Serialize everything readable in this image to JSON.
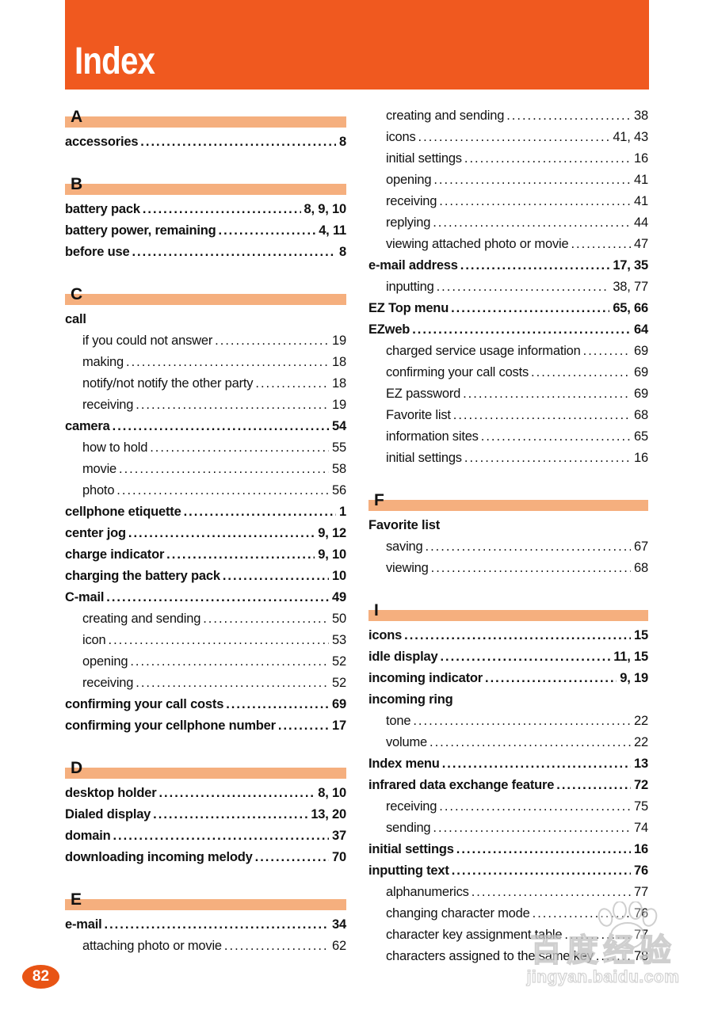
{
  "page": {
    "title": "Index",
    "page_number": "82"
  },
  "watermark": {
    "logo_text": "百度经验",
    "site_text": "jingyan.baidu.com"
  },
  "colors": {
    "header_orange": "#F0591F",
    "section_bar_peach": "#F5AF7E",
    "badge_orange": "#E85414",
    "text": "#111111"
  },
  "index": {
    "left_column": [
      {
        "type": "section",
        "letter": "A"
      },
      {
        "type": "entry",
        "label": "accessories",
        "pages": "8",
        "bold": true,
        "sub": false
      },
      {
        "type": "section",
        "letter": "B"
      },
      {
        "type": "entry",
        "label": "battery pack",
        "pages": "8, 9, 10",
        "bold": true,
        "sub": false
      },
      {
        "type": "entry",
        "label": "battery power, remaining",
        "pages": "4, 11",
        "bold": true,
        "sub": false
      },
      {
        "type": "entry",
        "label": "before use",
        "pages": "8",
        "bold": true,
        "sub": false
      },
      {
        "type": "section",
        "letter": "C"
      },
      {
        "type": "entry",
        "label": "call",
        "pages": "",
        "bold": true,
        "sub": false
      },
      {
        "type": "entry",
        "label": "if you could not answer",
        "pages": "19",
        "bold": false,
        "sub": true
      },
      {
        "type": "entry",
        "label": "making",
        "pages": "18",
        "bold": false,
        "sub": true
      },
      {
        "type": "entry",
        "label": "notify/not notify the other party",
        "pages": "18",
        "bold": false,
        "sub": true
      },
      {
        "type": "entry",
        "label": "receiving",
        "pages": "19",
        "bold": false,
        "sub": true
      },
      {
        "type": "entry",
        "label": "camera",
        "pages": "54",
        "bold": true,
        "sub": false
      },
      {
        "type": "entry",
        "label": "how to hold",
        "pages": "55",
        "bold": false,
        "sub": true
      },
      {
        "type": "entry",
        "label": "movie",
        "pages": "58",
        "bold": false,
        "sub": true
      },
      {
        "type": "entry",
        "label": "photo",
        "pages": "56",
        "bold": false,
        "sub": true
      },
      {
        "type": "entry",
        "label": "cellphone etiquette",
        "pages": "1",
        "bold": true,
        "sub": false
      },
      {
        "type": "entry",
        "label": "center jog",
        "pages": "9, 12",
        "bold": true,
        "sub": false
      },
      {
        "type": "entry",
        "label": "charge indicator",
        "pages": "9, 10",
        "bold": true,
        "sub": false
      },
      {
        "type": "entry",
        "label": "charging the battery pack",
        "pages": "10",
        "bold": true,
        "sub": false
      },
      {
        "type": "entry",
        "label": "C-mail",
        "pages": "49",
        "bold": true,
        "sub": false
      },
      {
        "type": "entry",
        "label": "creating and sending",
        "pages": "50",
        "bold": false,
        "sub": true
      },
      {
        "type": "entry",
        "label": "icon",
        "pages": "53",
        "bold": false,
        "sub": true
      },
      {
        "type": "entry",
        "label": "opening",
        "pages": "52",
        "bold": false,
        "sub": true
      },
      {
        "type": "entry",
        "label": "receiving",
        "pages": "52",
        "bold": false,
        "sub": true
      },
      {
        "type": "entry",
        "label": "confirming your call costs",
        "pages": "69",
        "bold": true,
        "sub": false
      },
      {
        "type": "entry",
        "label": "confirming your cellphone number",
        "pages": "17",
        "bold": true,
        "sub": false
      },
      {
        "type": "section",
        "letter": "D"
      },
      {
        "type": "entry",
        "label": "desktop holder",
        "pages": "8, 10",
        "bold": true,
        "sub": false
      },
      {
        "type": "entry",
        "label": "Dialed display",
        "pages": "13, 20",
        "bold": true,
        "sub": false
      },
      {
        "type": "entry",
        "label": "domain",
        "pages": "37",
        "bold": true,
        "sub": false
      },
      {
        "type": "entry",
        "label": "downloading incoming melody",
        "pages": "70",
        "bold": true,
        "sub": false
      },
      {
        "type": "section",
        "letter": "E"
      },
      {
        "type": "entry",
        "label": "e-mail",
        "pages": "34",
        "bold": true,
        "sub": false
      },
      {
        "type": "entry",
        "label": "attaching photo or movie",
        "pages": "62",
        "bold": false,
        "sub": true
      }
    ],
    "right_column": [
      {
        "type": "entry",
        "label": "creating and sending",
        "pages": "38",
        "bold": false,
        "sub": true
      },
      {
        "type": "entry",
        "label": "icons",
        "pages": "41, 43",
        "bold": false,
        "sub": true
      },
      {
        "type": "entry",
        "label": "initial settings",
        "pages": "16",
        "bold": false,
        "sub": true
      },
      {
        "type": "entry",
        "label": "opening",
        "pages": "41",
        "bold": false,
        "sub": true
      },
      {
        "type": "entry",
        "label": "receiving",
        "pages": "41",
        "bold": false,
        "sub": true
      },
      {
        "type": "entry",
        "label": "replying",
        "pages": "44",
        "bold": false,
        "sub": true
      },
      {
        "type": "entry",
        "label": "viewing attached photo or movie",
        "pages": "47",
        "bold": false,
        "sub": true
      },
      {
        "type": "entry",
        "label": "e-mail address",
        "pages": "17, 35",
        "bold": true,
        "sub": false
      },
      {
        "type": "entry",
        "label": "inputting",
        "pages": "38, 77",
        "bold": false,
        "sub": true
      },
      {
        "type": "entry",
        "label": "EZ Top menu",
        "pages": "65, 66",
        "bold": true,
        "sub": false
      },
      {
        "type": "entry",
        "label": "EZweb",
        "pages": "64",
        "bold": true,
        "sub": false
      },
      {
        "type": "entry",
        "label": "charged service usage information",
        "pages": "69",
        "bold": false,
        "sub": true
      },
      {
        "type": "entry",
        "label": "confirming your call costs",
        "pages": "69",
        "bold": false,
        "sub": true
      },
      {
        "type": "entry",
        "label": "EZ password",
        "pages": "69",
        "bold": false,
        "sub": true
      },
      {
        "type": "entry",
        "label": "Favorite list",
        "pages": "68",
        "bold": false,
        "sub": true
      },
      {
        "type": "entry",
        "label": "information sites",
        "pages": "65",
        "bold": false,
        "sub": true
      },
      {
        "type": "entry",
        "label": "initial settings",
        "pages": "16",
        "bold": false,
        "sub": true
      },
      {
        "type": "section",
        "letter": "F"
      },
      {
        "type": "entry",
        "label": "Favorite list",
        "pages": "",
        "bold": true,
        "sub": false
      },
      {
        "type": "entry",
        "label": "saving",
        "pages": "67",
        "bold": false,
        "sub": true
      },
      {
        "type": "entry",
        "label": "viewing",
        "pages": "68",
        "bold": false,
        "sub": true
      },
      {
        "type": "section",
        "letter": "I"
      },
      {
        "type": "entry",
        "label": "icons",
        "pages": "15",
        "bold": true,
        "sub": false
      },
      {
        "type": "entry",
        "label": "idle display",
        "pages": "11, 15",
        "bold": true,
        "sub": false
      },
      {
        "type": "entry",
        "label": "incoming indicator",
        "pages": "9, 19",
        "bold": true,
        "sub": false
      },
      {
        "type": "entry",
        "label": "incoming ring",
        "pages": "",
        "bold": true,
        "sub": false
      },
      {
        "type": "entry",
        "label": "tone",
        "pages": "22",
        "bold": false,
        "sub": true
      },
      {
        "type": "entry",
        "label": "volume",
        "pages": "22",
        "bold": false,
        "sub": true
      },
      {
        "type": "entry",
        "label": "Index menu",
        "pages": "13",
        "bold": true,
        "sub": false
      },
      {
        "type": "entry",
        "label": "infrared data exchange feature",
        "pages": "72",
        "bold": true,
        "sub": false
      },
      {
        "type": "entry",
        "label": "receiving",
        "pages": "75",
        "bold": false,
        "sub": true
      },
      {
        "type": "entry",
        "label": "sending",
        "pages": "74",
        "bold": false,
        "sub": true
      },
      {
        "type": "entry",
        "label": "initial settings",
        "pages": "16",
        "bold": true,
        "sub": false
      },
      {
        "type": "entry",
        "label": "inputting text",
        "pages": "76",
        "bold": true,
        "sub": false
      },
      {
        "type": "entry",
        "label": "alphanumerics",
        "pages": "77",
        "bold": false,
        "sub": true
      },
      {
        "type": "entry",
        "label": "changing character mode",
        "pages": "76",
        "bold": false,
        "sub": true
      },
      {
        "type": "entry",
        "label": "character key assignment table",
        "pages": "77",
        "bold": false,
        "sub": true
      },
      {
        "type": "entry",
        "label": "characters assigned to the same key",
        "pages": "78",
        "bold": false,
        "sub": true
      }
    ]
  }
}
